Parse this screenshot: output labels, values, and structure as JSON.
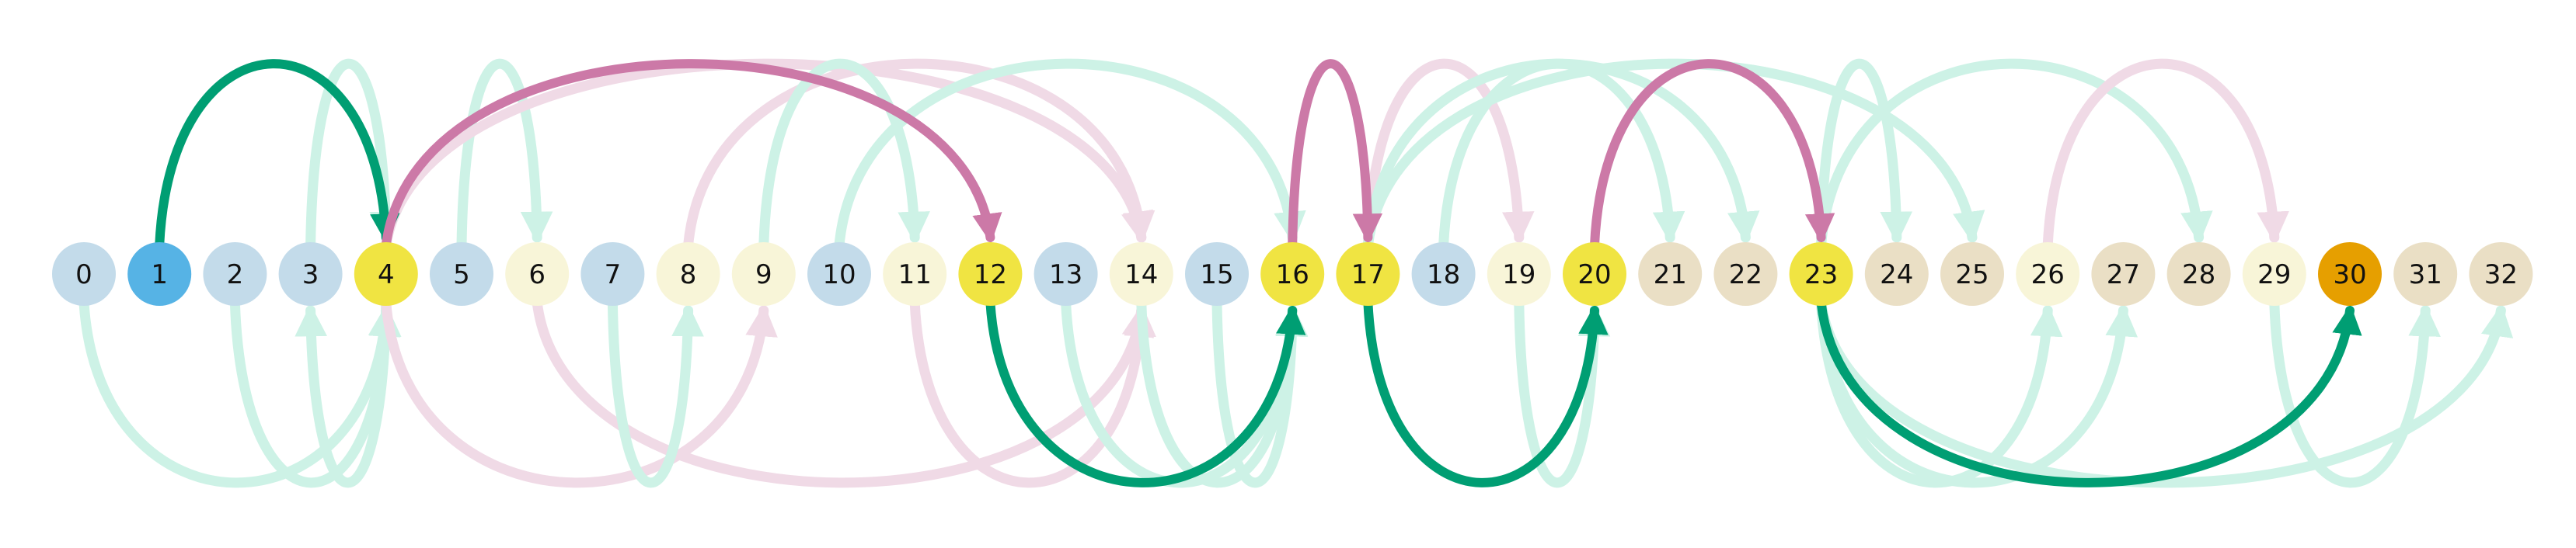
{
  "nodes": [
    {
      "label": "0",
      "color": "#c3dbea"
    },
    {
      "label": "1",
      "color": "#56b3e5"
    },
    {
      "label": "2",
      "color": "#c3dbea"
    },
    {
      "label": "3",
      "color": "#c3dbea"
    },
    {
      "label": "4",
      "color": "#f0e442"
    },
    {
      "label": "5",
      "color": "#c3dbea"
    },
    {
      "label": "6",
      "color": "#f8f5d8"
    },
    {
      "label": "7",
      "color": "#c3dbea"
    },
    {
      "label": "8",
      "color": "#f8f5d8"
    },
    {
      "label": "9",
      "color": "#f8f5d8"
    },
    {
      "label": "10",
      "color": "#c3dbea"
    },
    {
      "label": "11",
      "color": "#f8f5d8"
    },
    {
      "label": "12",
      "color": "#f0e442"
    },
    {
      "label": "13",
      "color": "#c3dbea"
    },
    {
      "label": "14",
      "color": "#f8f5d8"
    },
    {
      "label": "15",
      "color": "#c3dbea"
    },
    {
      "label": "16",
      "color": "#f0e442"
    },
    {
      "label": "17",
      "color": "#f0e442"
    },
    {
      "label": "18",
      "color": "#c3dbea"
    },
    {
      "label": "19",
      "color": "#f8f5d8"
    },
    {
      "label": "20",
      "color": "#f0e442"
    },
    {
      "label": "21",
      "color": "#eadfc5"
    },
    {
      "label": "22",
      "color": "#eadfc5"
    },
    {
      "label": "23",
      "color": "#f0e442"
    },
    {
      "label": "24",
      "color": "#eadfc5"
    },
    {
      "label": "25",
      "color": "#eadfc5"
    },
    {
      "label": "26",
      "color": "#f8f5d8"
    },
    {
      "label": "27",
      "color": "#eadfc5"
    },
    {
      "label": "28",
      "color": "#eadfc5"
    },
    {
      "label": "29",
      "color": "#f8f5d8"
    },
    {
      "label": "30",
      "color": "#e69f00"
    },
    {
      "label": "31",
      "color": "#eadfc5"
    },
    {
      "label": "32",
      "color": "#eadfc5"
    }
  ],
  "edge_colors": {
    "green": "#009e73",
    "pink": "#cc79a7",
    "green_faded": "#cdf2e6",
    "pink_faded": "#f0dae6"
  },
  "edges": [
    {
      "from": 1,
      "to": 4,
      "side": "top",
      "style": "green"
    },
    {
      "from": 4,
      "to": 12,
      "side": "top",
      "style": "pink"
    },
    {
      "from": 12,
      "to": 16,
      "side": "bottom",
      "style": "green"
    },
    {
      "from": 16,
      "to": 17,
      "side": "top",
      "style": "pink"
    },
    {
      "from": 17,
      "to": 20,
      "side": "bottom",
      "style": "green"
    },
    {
      "from": 20,
      "to": 23,
      "side": "top",
      "style": "pink"
    },
    {
      "from": 23,
      "to": 30,
      "side": "bottom",
      "style": "green"
    },
    {
      "from": 0,
      "to": 4,
      "side": "bottom",
      "style": "green_faded"
    },
    {
      "from": 2,
      "to": 4,
      "side": "bottom",
      "style": "green_faded"
    },
    {
      "from": 3,
      "to": 4,
      "side": "top",
      "style": "green_faded"
    },
    {
      "from": 4,
      "to": 3,
      "side": "bottom",
      "style": "green_faded"
    },
    {
      "from": 5,
      "to": 6,
      "side": "top",
      "style": "green_faded"
    },
    {
      "from": 4,
      "to": 14,
      "side": "top",
      "style": "pink_faded"
    },
    {
      "from": 6,
      "to": 14,
      "side": "bottom",
      "style": "pink_faded"
    },
    {
      "from": 4,
      "to": 9,
      "side": "bottom",
      "style": "pink_faded"
    },
    {
      "from": 7,
      "to": 8,
      "side": "bottom",
      "style": "green_faded"
    },
    {
      "from": 8,
      "to": 14,
      "side": "top",
      "style": "pink_faded"
    },
    {
      "from": 9,
      "to": 11,
      "side": "top",
      "style": "green_faded"
    },
    {
      "from": 10,
      "to": 16,
      "side": "top",
      "style": "green_faded"
    },
    {
      "from": 11,
      "to": 14,
      "side": "bottom",
      "style": "pink_faded"
    },
    {
      "from": 13,
      "to": 16,
      "side": "bottom",
      "style": "green_faded"
    },
    {
      "from": 14,
      "to": 16,
      "side": "bottom",
      "style": "green_faded"
    },
    {
      "from": 15,
      "to": 16,
      "side": "bottom",
      "style": "green_faded"
    },
    {
      "from": 17,
      "to": 19,
      "side": "top",
      "style": "pink_faded"
    },
    {
      "from": 17,
      "to": 22,
      "side": "top",
      "style": "green_faded"
    },
    {
      "from": 17,
      "to": 25,
      "side": "top",
      "style": "green_faded"
    },
    {
      "from": 18,
      "to": 21,
      "side": "top",
      "style": "green_faded"
    },
    {
      "from": 19,
      "to": 20,
      "side": "bottom",
      "style": "green_faded"
    },
    {
      "from": 23,
      "to": 24,
      "side": "top",
      "style": "green_faded"
    },
    {
      "from": 23,
      "to": 28,
      "side": "top",
      "style": "green_faded"
    },
    {
      "from": 26,
      "to": 29,
      "side": "top",
      "style": "pink_faded"
    },
    {
      "from": 23,
      "to": 26,
      "side": "bottom",
      "style": "green_faded"
    },
    {
      "from": 23,
      "to": 27,
      "side": "bottom",
      "style": "green_faded"
    },
    {
      "from": 23,
      "to": 32,
      "side": "bottom",
      "style": "green_faded"
    },
    {
      "from": 29,
      "to": 31,
      "side": "bottom",
      "style": "green_faded"
    }
  ]
}
